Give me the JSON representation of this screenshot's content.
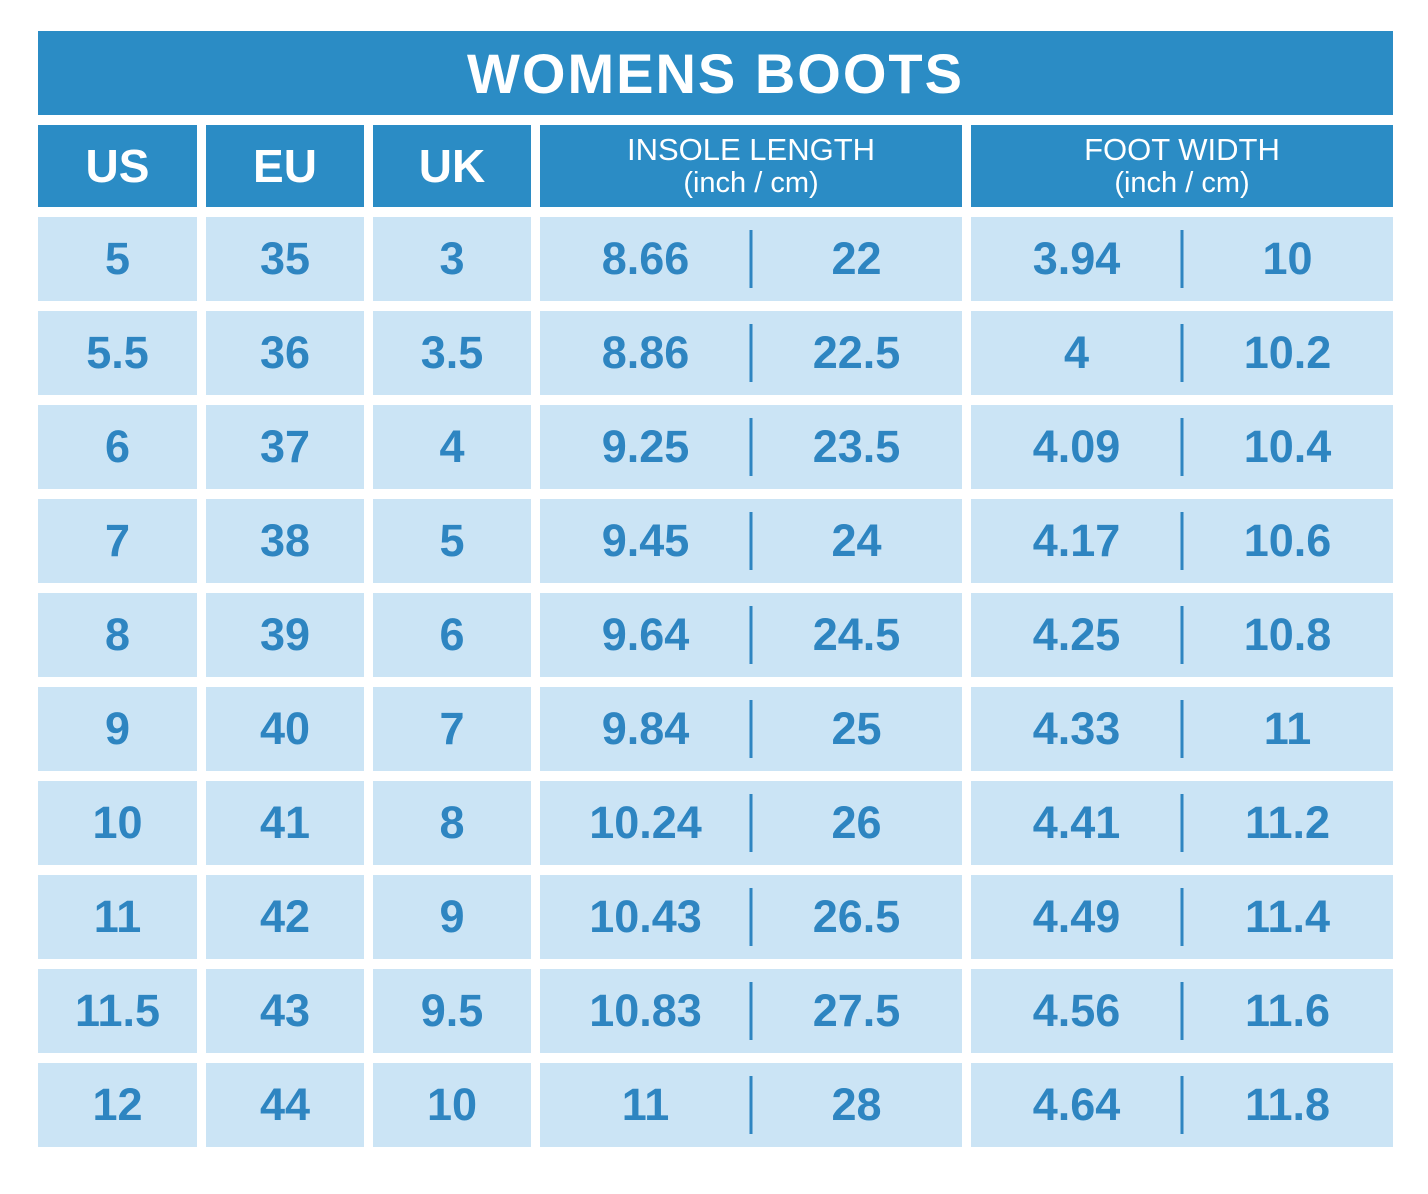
{
  "title": "WOMENS BOOTS",
  "colors": {
    "header_blue": "#2b8cc5",
    "header_text": "#ffffff",
    "cell_blue": "#cbe4f5",
    "text_blue": "#2e85c1",
    "page_background": "#ffffff"
  },
  "chart_data": {
    "type": "table",
    "title": "WOMENS BOOTS",
    "headers": [
      {
        "label": "US"
      },
      {
        "label": "EU"
      },
      {
        "label": "UK"
      },
      {
        "label": "INSOLE LENGTH",
        "sub": "(inch / cm)"
      },
      {
        "label": "FOOT WIDTH",
        "sub": "(inch / cm)"
      }
    ],
    "columns": [
      "US",
      "EU",
      "UK",
      "INSOLE LENGTH inch",
      "INSOLE LENGTH cm",
      "FOOT WIDTH inch",
      "FOOT WIDTH cm"
    ],
    "rows": [
      [
        "5",
        "35",
        "3",
        "8.66",
        "22",
        "3.94",
        "10"
      ],
      [
        "5.5",
        "36",
        "3.5",
        "8.86",
        "22.5",
        "4",
        "10.2"
      ],
      [
        "6",
        "37",
        "4",
        "9.25",
        "23.5",
        "4.09",
        "10.4"
      ],
      [
        "7",
        "38",
        "5",
        "9.45",
        "24",
        "4.17",
        "10.6"
      ],
      [
        "8",
        "39",
        "6",
        "9.64",
        "24.5",
        "4.25",
        "10.8"
      ],
      [
        "9",
        "40",
        "7",
        "9.84",
        "25",
        "4.33",
        "11"
      ],
      [
        "10",
        "41",
        "8",
        "10.24",
        "26",
        "4.41",
        "11.2"
      ],
      [
        "11",
        "42",
        "9",
        "10.43",
        "26.5",
        "4.49",
        "11.4"
      ],
      [
        "11.5",
        "43",
        "9.5",
        "10.83",
        "27.5",
        "4.56",
        "11.6"
      ],
      [
        "12",
        "44",
        "10",
        "11",
        "28",
        "4.64",
        "11.8"
      ]
    ]
  }
}
